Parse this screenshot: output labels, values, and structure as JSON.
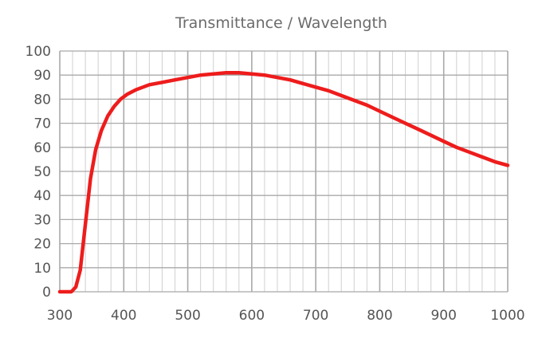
{
  "chart_data": {
    "type": "line",
    "title": "Transmittance / Wavelength",
    "xlabel": "",
    "ylabel": "",
    "xlim": [
      300,
      1000
    ],
    "ylim": [
      0,
      100
    ],
    "x_ticks": [
      300,
      400,
      500,
      600,
      700,
      800,
      900,
      1000
    ],
    "y_ticks": [
      0,
      10,
      20,
      30,
      40,
      50,
      60,
      70,
      80,
      90,
      100
    ],
    "x_minor_step": 20,
    "y_minor_step": 10,
    "grid": true,
    "legend": "none",
    "colors": {
      "line": "#ee1c1c",
      "grid_major": "#a9a9a9",
      "grid_minor": "#d4d4d4",
      "title": "#6b6b6b",
      "tick_label": "#555555"
    },
    "series": [
      {
        "x": [
          300,
          310,
          318,
          325,
          332,
          340,
          348,
          356,
          365,
          375,
          385,
          395,
          405,
          420,
          440,
          460,
          480,
          500,
          520,
          540,
          560,
          580,
          600,
          620,
          640,
          660,
          680,
          700,
          720,
          740,
          760,
          780,
          800,
          820,
          840,
          860,
          880,
          900,
          920,
          940,
          960,
          980,
          1000
        ],
        "y": [
          0,
          0,
          0,
          2,
          9,
          28,
          47,
          59,
          67,
          73,
          77,
          80,
          82,
          84,
          86,
          87,
          88,
          89,
          90,
          90.5,
          91,
          91,
          90.5,
          90,
          89,
          88,
          86.5,
          85,
          83.5,
          81.5,
          79.5,
          77.5,
          75,
          72.5,
          70,
          67.5,
          65,
          62.5,
          60,
          58,
          56,
          54,
          52.5
        ]
      }
    ]
  }
}
